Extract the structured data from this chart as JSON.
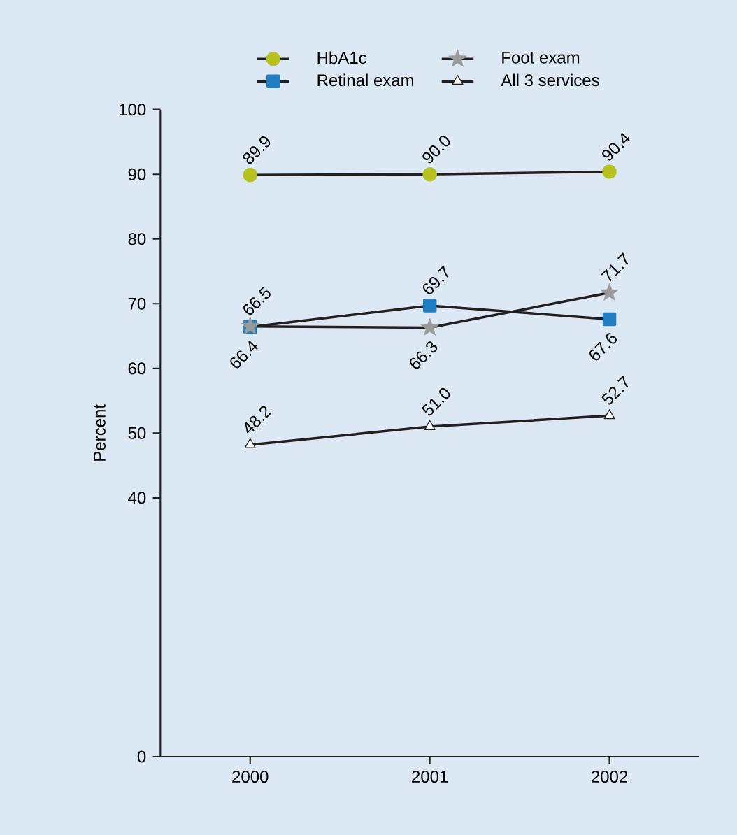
{
  "chart_data": {
    "type": "line",
    "ylabel": "Percent",
    "categories": [
      "2000",
      "2001",
      "2002"
    ],
    "series": [
      {
        "name": "HbA1c",
        "color": "#b8c21f",
        "marker": "circle",
        "values": [
          89.9,
          90.0,
          90.4
        ],
        "value_labels": [
          "89.9",
          "90.0",
          "90.4"
        ]
      },
      {
        "name": "Retinal exam",
        "color": "#1f7ec4",
        "marker": "square",
        "values": [
          66.4,
          69.7,
          67.6
        ],
        "value_labels": [
          "66.4",
          "69.7",
          "67.6"
        ]
      },
      {
        "name": "Foot exam",
        "color": "#9a9a9a",
        "marker": "star",
        "values": [
          66.5,
          66.3,
          71.7
        ],
        "value_labels": [
          "66.5",
          "66.3",
          "71.7"
        ]
      },
      {
        "name": "All 3 services",
        "color": "#ffffff",
        "marker": "triangle",
        "values": [
          48.2,
          51.0,
          52.7
        ],
        "value_labels": [
          "48.2",
          "51.0",
          "52.7"
        ]
      }
    ],
    "ylim": [
      0,
      100
    ],
    "yticks": [
      0,
      40,
      50,
      60,
      70,
      80,
      90,
      100
    ],
    "grid": false,
    "legend": "top",
    "line_style": "solid"
  }
}
